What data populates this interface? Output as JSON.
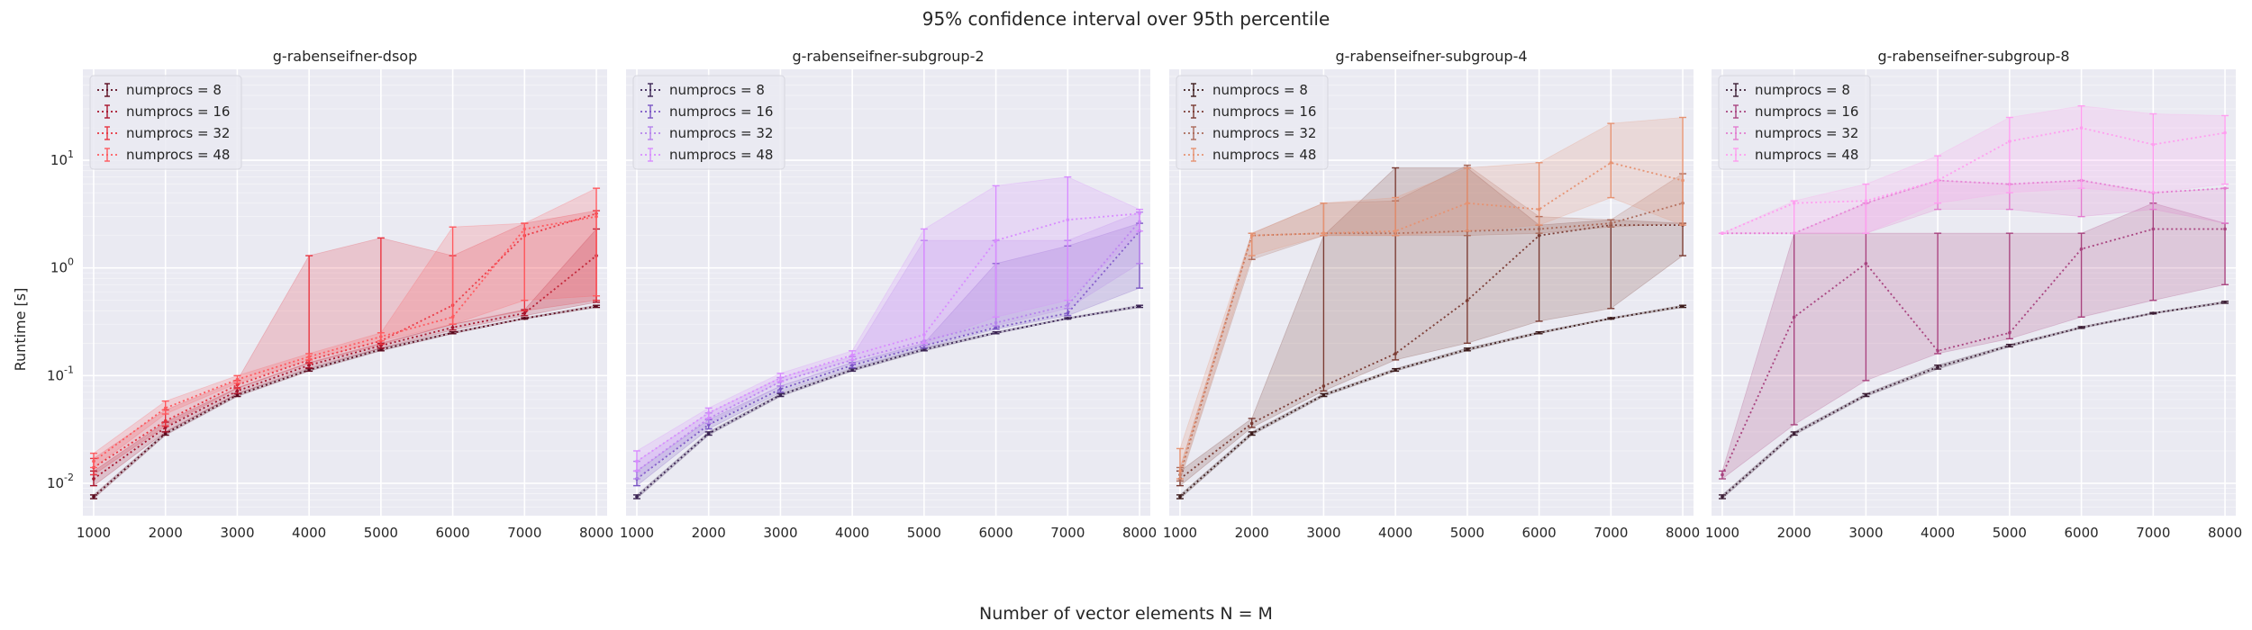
{
  "figure": {
    "title": "95% confidence interval over 95th percentile",
    "xlabel": "Number of vector elements N = M",
    "ylabel": "Runtime [s]"
  },
  "chart_data": [
    {
      "type": "line",
      "title": "g-rabenseifner-dsop",
      "x": [
        1000,
        2000,
        3000,
        4000,
        5000,
        6000,
        7000,
        8000
      ],
      "yscale": "log",
      "ylim": [
        0.005,
        70
      ],
      "yticks": [
        "10^-2",
        "10^-1",
        "10^0",
        "10^1"
      ],
      "grid": true,
      "legend_position": "top-left",
      "series": [
        {
          "name": "numprocs = 8",
          "color": "#5c0a1e",
          "mid": [
            0.0075,
            0.029,
            0.066,
            0.113,
            0.175,
            0.25,
            0.34,
            0.44
          ],
          "low": [
            0.0072,
            0.028,
            0.064,
            0.11,
            0.17,
            0.245,
            0.335,
            0.43
          ],
          "high": [
            0.0078,
            0.03,
            0.068,
            0.116,
            0.18,
            0.255,
            0.345,
            0.45
          ]
        },
        {
          "name": "numprocs = 16",
          "color": "#a8142c",
          "mid": [
            0.011,
            0.033,
            0.072,
            0.125,
            0.19,
            0.28,
            0.38,
            1.3
          ],
          "low": [
            0.0095,
            0.03,
            0.068,
            0.118,
            0.18,
            0.265,
            0.36,
            0.48
          ],
          "high": [
            0.013,
            0.037,
            0.077,
            0.132,
            0.2,
            0.3,
            0.41,
            2.3
          ]
        },
        {
          "name": "numprocs = 32",
          "color": "#e8333f",
          "mid": [
            0.014,
            0.038,
            0.082,
            0.14,
            0.21,
            0.45,
            2.0,
            3.2
          ],
          "low": [
            0.012,
            0.034,
            0.076,
            0.13,
            0.195,
            0.3,
            0.4,
            0.5
          ],
          "high": [
            0.017,
            0.048,
            0.09,
            1.3,
            1.9,
            1.3,
            2.6,
            3.4
          ]
        },
        {
          "name": "numprocs = 48",
          "color": "#ff5a5f",
          "mid": [
            0.016,
            0.05,
            0.092,
            0.15,
            0.23,
            0.35,
            2.3,
            3.0
          ],
          "low": [
            0.014,
            0.044,
            0.085,
            0.14,
            0.21,
            0.3,
            0.5,
            0.55
          ],
          "high": [
            0.019,
            0.058,
            0.1,
            0.16,
            0.25,
            2.4,
            2.6,
            5.5
          ]
        }
      ]
    },
    {
      "type": "line",
      "title": "g-rabenseifner-subgroup-2",
      "x": [
        1000,
        2000,
        3000,
        4000,
        5000,
        6000,
        7000,
        8000
      ],
      "yscale": "log",
      "ylim": [
        0.005,
        70
      ],
      "grid": true,
      "legend_position": "top-left",
      "series": [
        {
          "name": "numprocs = 8",
          "color": "#3b2454",
          "mid": [
            0.0075,
            0.029,
            0.066,
            0.113,
            0.175,
            0.25,
            0.34,
            0.44
          ],
          "low": [
            0.0072,
            0.028,
            0.064,
            0.11,
            0.17,
            0.245,
            0.335,
            0.43
          ],
          "high": [
            0.0078,
            0.03,
            0.068,
            0.116,
            0.18,
            0.255,
            0.345,
            0.45
          ]
        },
        {
          "name": "numprocs = 16",
          "color": "#7a55c4",
          "mid": [
            0.011,
            0.035,
            0.075,
            0.125,
            0.19,
            0.28,
            0.38,
            2.2
          ],
          "low": [
            0.0095,
            0.032,
            0.07,
            0.118,
            0.18,
            0.27,
            0.36,
            0.65
          ],
          "high": [
            0.013,
            0.039,
            0.08,
            0.132,
            0.2,
            1.1,
            1.6,
            2.6
          ]
        },
        {
          "name": "numprocs = 32",
          "color": "#b684ec",
          "mid": [
            0.013,
            0.04,
            0.088,
            0.14,
            0.21,
            0.31,
            0.45,
            2.7
          ],
          "low": [
            0.011,
            0.036,
            0.08,
            0.13,
            0.19,
            0.29,
            0.42,
            1.1
          ],
          "high": [
            0.016,
            0.045,
            0.096,
            0.15,
            1.8,
            1.8,
            1.8,
            3.3
          ]
        },
        {
          "name": "numprocs = 48",
          "color": "#d88cff",
          "mid": [
            0.016,
            0.045,
            0.095,
            0.155,
            0.24,
            1.8,
            2.8,
            3.2
          ],
          "low": [
            0.013,
            0.04,
            0.088,
            0.14,
            0.2,
            0.35,
            0.5,
            2.2
          ],
          "high": [
            0.02,
            0.05,
            0.105,
            0.17,
            2.3,
            5.8,
            7.0,
            3.5
          ]
        }
      ]
    },
    {
      "type": "line",
      "title": "g-rabenseifner-subgroup-4",
      "x": [
        1000,
        2000,
        3000,
        4000,
        5000,
        6000,
        7000,
        8000
      ],
      "yscale": "log",
      "ylim": [
        0.005,
        70
      ],
      "grid": true,
      "legend_position": "top-left",
      "series": [
        {
          "name": "numprocs = 8",
          "color": "#3d1c1c",
          "mid": [
            0.0075,
            0.029,
            0.066,
            0.113,
            0.175,
            0.25,
            0.34,
            0.44
          ],
          "low": [
            0.0072,
            0.028,
            0.064,
            0.11,
            0.17,
            0.245,
            0.335,
            0.43
          ],
          "high": [
            0.0078,
            0.03,
            0.068,
            0.116,
            0.18,
            0.255,
            0.345,
            0.45
          ]
        },
        {
          "name": "numprocs = 16",
          "color": "#7a3b33",
          "mid": [
            0.011,
            0.036,
            0.08,
            0.16,
            0.5,
            2.0,
            2.5,
            2.5
          ],
          "low": [
            0.0095,
            0.033,
            0.072,
            0.14,
            0.2,
            0.32,
            0.42,
            1.3
          ],
          "high": [
            0.013,
            0.04,
            2.0,
            8.5,
            8.5,
            2.5,
            2.8,
            2.6
          ]
        },
        {
          "name": "numprocs = 32",
          "color": "#ab6a5a",
          "mid": [
            0.012,
            2.0,
            2.1,
            2.1,
            2.2,
            2.3,
            2.6,
            4.0
          ],
          "low": [
            0.0105,
            1.2,
            2.0,
            2.0,
            2.0,
            2.1,
            2.4,
            2.6
          ],
          "high": [
            0.014,
            2.1,
            4.0,
            4.2,
            9.0,
            3.0,
            2.8,
            7.5
          ]
        },
        {
          "name": "numprocs = 48",
          "color": "#e69373",
          "mid": [
            0.013,
            2.0,
            2.1,
            2.2,
            4.0,
            3.5,
            9.5,
            6.5
          ],
          "low": [
            0.011,
            1.3,
            2.0,
            2.0,
            2.2,
            2.5,
            4.5,
            2.5
          ],
          "high": [
            0.021,
            2.1,
            4.0,
            4.5,
            8.5,
            9.5,
            22.0,
            25.0
          ]
        }
      ]
    },
    {
      "type": "line",
      "title": "g-rabenseifner-subgroup-8",
      "x": [
        1000,
        2000,
        3000,
        4000,
        5000,
        6000,
        7000,
        8000
      ],
      "yscale": "log",
      "ylim": [
        0.005,
        70
      ],
      "grid": true,
      "legend_position": "top-left",
      "series": [
        {
          "name": "numprocs = 8",
          "color": "#3d1f36",
          "mid": [
            0.0075,
            0.029,
            0.066,
            0.12,
            0.19,
            0.28,
            0.38,
            0.48
          ],
          "low": [
            0.0072,
            0.028,
            0.064,
            0.115,
            0.185,
            0.275,
            0.375,
            0.47
          ],
          "high": [
            0.0078,
            0.03,
            0.068,
            0.125,
            0.195,
            0.285,
            0.385,
            0.49
          ]
        },
        {
          "name": "numprocs = 16",
          "color": "#a8437f",
          "mid": [
            0.012,
            0.35,
            1.1,
            0.17,
            0.25,
            1.5,
            2.3,
            2.3
          ],
          "low": [
            0.011,
            0.035,
            0.09,
            0.16,
            0.22,
            0.35,
            0.5,
            0.7
          ],
          "high": [
            0.013,
            2.1,
            2.1,
            2.1,
            2.1,
            2.1,
            4.0,
            2.6
          ]
        },
        {
          "name": "numprocs = 32",
          "color": "#e27ccf",
          "mid": [
            2.1,
            2.1,
            4.0,
            6.5,
            6.0,
            6.5,
            5.0,
            5.5
          ],
          "low": [
            2.1,
            2.1,
            2.1,
            3.5,
            3.5,
            3.0,
            3.5,
            2.6
          ]
        },
        {
          "name": "numprocs = 48",
          "color": "#ff9ef0",
          "mid": [
            2.1,
            4.0,
            4.2,
            6.5,
            15.0,
            20.0,
            14.0,
            18.0
          ],
          "low": [
            2.1,
            2.1,
            2.1,
            4.0,
            5.0,
            5.5,
            5.0,
            6.0
          ],
          "high": [
            2.1,
            4.2,
            6.0,
            11.0,
            25.0,
            32.0,
            27.0,
            26.0
          ]
        }
      ]
    }
  ]
}
